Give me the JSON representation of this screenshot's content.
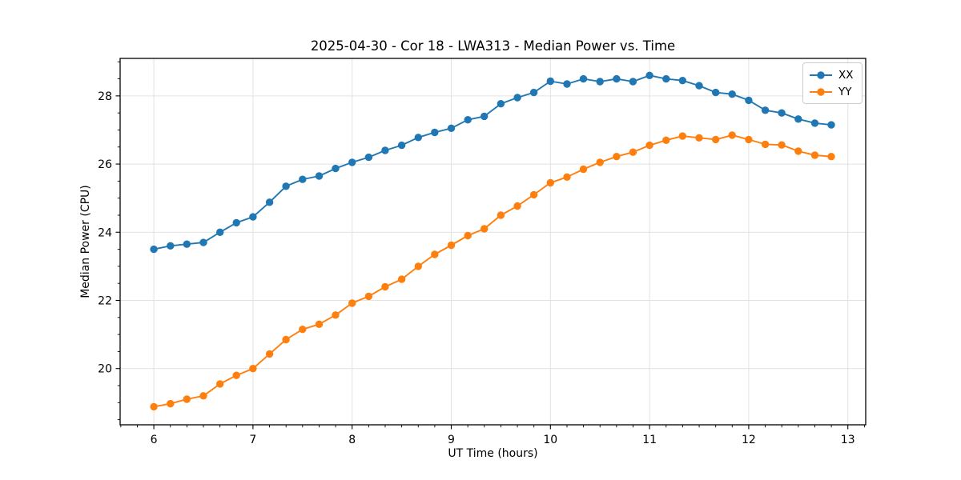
{
  "figure": {
    "title": "2025-04-30 - Cor 18 - LWA313 - Median Power vs. Time"
  },
  "chart_data": {
    "type": "line",
    "title": "2025-04-30 - Cor 18 - LWA313 - Median Power vs. Time",
    "xlabel": "UT Time (hours)",
    "ylabel": "Median Power (CPU)",
    "xlim": [
      5.66,
      13.18
    ],
    "ylim": [
      18.35,
      29.1
    ],
    "xticks": [
      6,
      7,
      8,
      9,
      10,
      11,
      12,
      13
    ],
    "yticks": [
      20,
      22,
      24,
      26,
      28
    ],
    "x_minor_step": 0.16667,
    "y_minor_step": 0.5,
    "grid": true,
    "legend_position": "upper right",
    "marker": "circle",
    "x": [
      6.0,
      6.167,
      6.333,
      6.5,
      6.667,
      6.833,
      7.0,
      7.167,
      7.333,
      7.5,
      7.667,
      7.833,
      8.0,
      8.167,
      8.333,
      8.5,
      8.667,
      8.833,
      9.0,
      9.167,
      9.333,
      9.5,
      9.667,
      9.833,
      10.0,
      10.167,
      10.333,
      10.5,
      10.667,
      10.833,
      11.0,
      11.167,
      11.333,
      11.5,
      11.667,
      11.833,
      12.0,
      12.167,
      12.333,
      12.5,
      12.667,
      12.833
    ],
    "series": [
      {
        "name": "XX",
        "color": "#1f77b4",
        "values": [
          23.5,
          23.6,
          23.65,
          23.7,
          24.0,
          24.28,
          24.45,
          24.88,
          25.35,
          25.55,
          25.65,
          25.87,
          26.05,
          26.2,
          26.4,
          26.55,
          26.78,
          26.93,
          27.05,
          27.3,
          27.4,
          27.77,
          27.95,
          28.1,
          28.43,
          28.35,
          28.5,
          28.42,
          28.5,
          28.42,
          28.6,
          28.5,
          28.45,
          28.3,
          28.1,
          28.05,
          27.87,
          27.58,
          27.5,
          27.32,
          27.2,
          27.15
        ]
      },
      {
        "name": "YY",
        "color": "#ff7f0e",
        "values": [
          18.88,
          18.97,
          19.1,
          19.2,
          19.55,
          19.8,
          20.0,
          20.43,
          20.85,
          21.15,
          21.3,
          21.57,
          21.92,
          22.12,
          22.4,
          22.62,
          23.0,
          23.35,
          23.62,
          23.9,
          24.1,
          24.5,
          24.77,
          25.1,
          25.45,
          25.62,
          25.85,
          26.05,
          26.22,
          26.35,
          26.55,
          26.7,
          26.82,
          26.77,
          26.72,
          26.85,
          26.72,
          26.58,
          26.56,
          26.38,
          26.26,
          26.22
        ]
      }
    ],
    "style": {
      "grid_color": "#e2e2e2",
      "spine_color": "#000000",
      "tick_color": "#000000",
      "background": "#ffffff"
    }
  }
}
